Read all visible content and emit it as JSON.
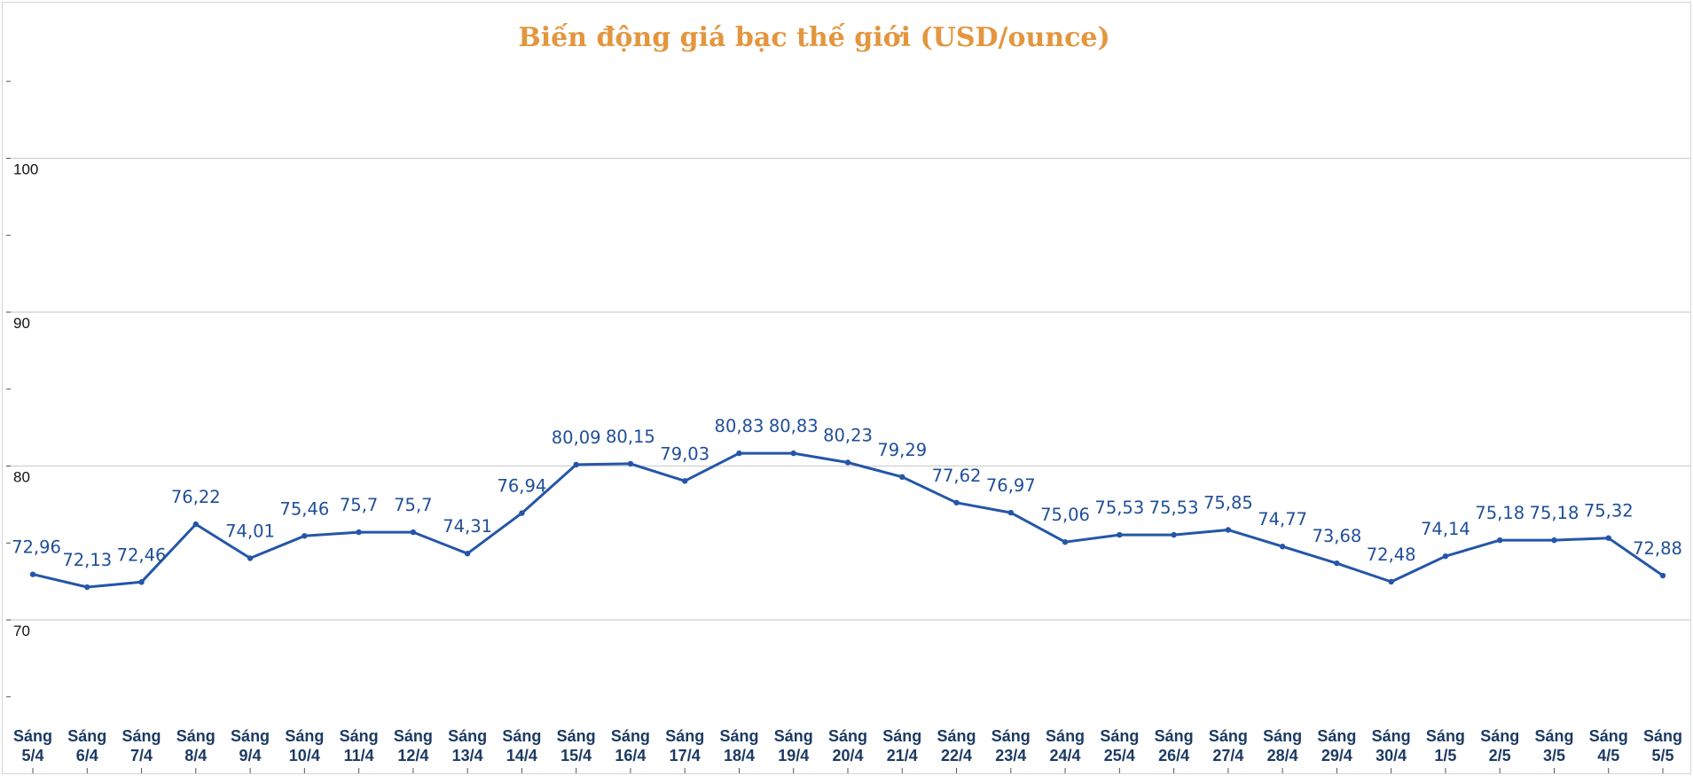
{
  "chart_data": {
    "type": "line",
    "title": "Biến động giá bạc thế giới (USD/ounce)",
    "xlabel": "",
    "ylabel": "",
    "ylim": [
      60,
      110
    ],
    "yticks": [
      70,
      80,
      90,
      100
    ],
    "grid": true,
    "legend": "none",
    "colors": {
      "title": "#e3963e",
      "line": "#2456a8",
      "labels": "#1f4e99",
      "xticks": "#1c3a63"
    },
    "categories": [
      [
        "Sáng",
        "5/4"
      ],
      [
        "Sáng",
        "6/4"
      ],
      [
        "Sáng",
        "7/4"
      ],
      [
        "Sáng",
        "8/4"
      ],
      [
        "Sáng",
        "9/4"
      ],
      [
        "Sáng",
        "10/4"
      ],
      [
        "Sáng",
        "11/4"
      ],
      [
        "Sáng",
        "12/4"
      ],
      [
        "Sáng",
        "13/4"
      ],
      [
        "Sáng",
        "14/4"
      ],
      [
        "Sáng",
        "15/4"
      ],
      [
        "Sáng",
        "16/4"
      ],
      [
        "Sáng",
        "17/4"
      ],
      [
        "Sáng",
        "18/4"
      ],
      [
        "Sáng",
        "19/4"
      ],
      [
        "Sáng",
        "20/4"
      ],
      [
        "Sáng",
        "21/4"
      ],
      [
        "Sáng",
        "22/4"
      ],
      [
        "Sáng",
        "23/4"
      ],
      [
        "Sáng",
        "24/4"
      ],
      [
        "Sáng",
        "25/4"
      ],
      [
        "Sáng",
        "26/4"
      ],
      [
        "Sáng",
        "27/4"
      ],
      [
        "Sáng",
        "28/4"
      ],
      [
        "Sáng",
        "29/4"
      ],
      [
        "Sáng",
        "30/4"
      ],
      [
        "Sáng",
        "1/5"
      ],
      [
        "Sáng",
        "2/5"
      ],
      [
        "Sáng",
        "3/5"
      ],
      [
        "Sáng",
        "4/5"
      ],
      [
        "Sáng",
        "5/5"
      ]
    ],
    "series": [
      {
        "values": [
          72.96,
          72.13,
          72.46,
          76.22,
          74.01,
          75.46,
          75.7,
          75.7,
          74.31,
          76.94,
          80.09,
          80.15,
          79.03,
          80.83,
          80.83,
          80.23,
          79.29,
          77.62,
          76.97,
          75.06,
          75.53,
          75.53,
          75.85,
          74.77,
          73.68,
          72.48,
          74.14,
          75.18,
          75.18,
          75.32,
          72.88
        ],
        "labels": [
          "72,96",
          "72,13",
          "72,46",
          "76,22",
          "74,01",
          "75,46",
          "75,7",
          "75,7",
          "74,31",
          "76,94",
          "80,09",
          "80,15",
          "79,03",
          "80,83",
          "80,83",
          "80,23",
          "79,29",
          "77,62",
          "76,97",
          "75,06",
          "75,53",
          "75,53",
          "75,85",
          "74,77",
          "73,68",
          "72,48",
          "74,14",
          "75,18",
          "75,18",
          "75,32",
          "72,88"
        ]
      }
    ]
  }
}
